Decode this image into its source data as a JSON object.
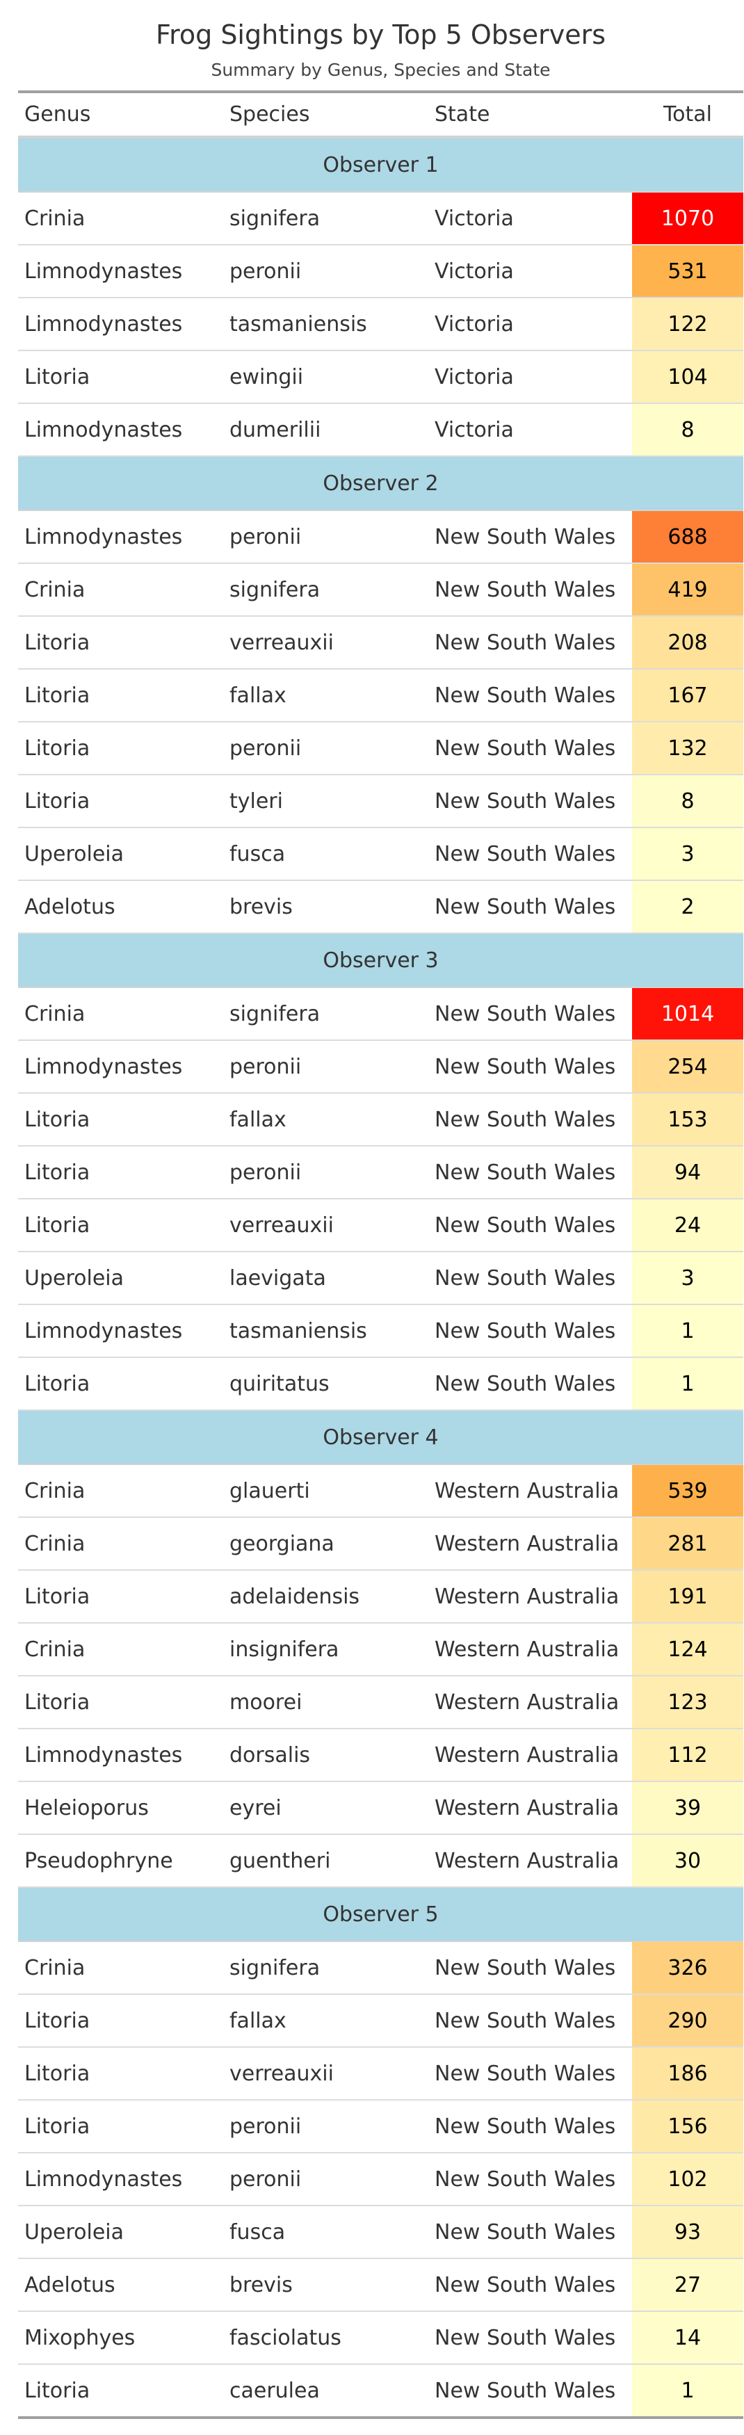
{
  "title": "Frog Sightings by Top 5 Observers",
  "subtitle": "Summary by Genus, Species and State",
  "chart_data": {
    "type": "table",
    "columns": [
      "Genus",
      "Species",
      "State",
      "Total"
    ],
    "color_scale": {
      "low": "#ffffcc",
      "mid": "#feb24c",
      "high": "#ff0000",
      "max_value": 1070
    },
    "groups": [
      {
        "name": "Observer 1",
        "rows": [
          [
            "Crinia",
            "signifera",
            "Victoria",
            1070
          ],
          [
            "Limnodynastes",
            "peronii",
            "Victoria",
            531
          ],
          [
            "Limnodynastes",
            "tasmaniensis",
            "Victoria",
            122
          ],
          [
            "Litoria",
            "ewingii",
            "Victoria",
            104
          ],
          [
            "Limnodynastes",
            "dumerilii",
            "Victoria",
            8
          ]
        ]
      },
      {
        "name": "Observer 2",
        "rows": [
          [
            "Limnodynastes",
            "peronii",
            "New South Wales",
            688
          ],
          [
            "Crinia",
            "signifera",
            "New South Wales",
            419
          ],
          [
            "Litoria",
            "verreauxii",
            "New South Wales",
            208
          ],
          [
            "Litoria",
            "fallax",
            "New South Wales",
            167
          ],
          [
            "Litoria",
            "peronii",
            "New South Wales",
            132
          ],
          [
            "Litoria",
            "tyleri",
            "New South Wales",
            8
          ],
          [
            "Uperoleia",
            "fusca",
            "New South Wales",
            3
          ],
          [
            "Adelotus",
            "brevis",
            "New South Wales",
            2
          ]
        ]
      },
      {
        "name": "Observer 3",
        "rows": [
          [
            "Crinia",
            "signifera",
            "New South Wales",
            1014
          ],
          [
            "Limnodynastes",
            "peronii",
            "New South Wales",
            254
          ],
          [
            "Litoria",
            "fallax",
            "New South Wales",
            153
          ],
          [
            "Litoria",
            "peronii",
            "New South Wales",
            94
          ],
          [
            "Litoria",
            "verreauxii",
            "New South Wales",
            24
          ],
          [
            "Uperoleia",
            "laevigata",
            "New South Wales",
            3
          ],
          [
            "Limnodynastes",
            "tasmaniensis",
            "New South Wales",
            1
          ],
          [
            "Litoria",
            "quiritatus",
            "New South Wales",
            1
          ]
        ]
      },
      {
        "name": "Observer 4",
        "rows": [
          [
            "Crinia",
            "glauerti",
            "Western Australia",
            539
          ],
          [
            "Crinia",
            "georgiana",
            "Western Australia",
            281
          ],
          [
            "Litoria",
            "adelaidensis",
            "Western Australia",
            191
          ],
          [
            "Crinia",
            "insignifera",
            "Western Australia",
            124
          ],
          [
            "Litoria",
            "moorei",
            "Western Australia",
            123
          ],
          [
            "Limnodynastes",
            "dorsalis",
            "Western Australia",
            112
          ],
          [
            "Heleioporus",
            "eyrei",
            "Western Australia",
            39
          ],
          [
            "Pseudophryne",
            "guentheri",
            "Western Australia",
            30
          ]
        ]
      },
      {
        "name": "Observer 5",
        "rows": [
          [
            "Crinia",
            "signifera",
            "New South Wales",
            326
          ],
          [
            "Litoria",
            "fallax",
            "New South Wales",
            290
          ],
          [
            "Litoria",
            "verreauxii",
            "New South Wales",
            186
          ],
          [
            "Litoria",
            "peronii",
            "New South Wales",
            156
          ],
          [
            "Limnodynastes",
            "peronii",
            "New South Wales",
            102
          ],
          [
            "Uperoleia",
            "fusca",
            "New South Wales",
            93
          ],
          [
            "Adelotus",
            "brevis",
            "New South Wales",
            27
          ],
          [
            "Mixophyes",
            "fasciolatus",
            "New South Wales",
            14
          ],
          [
            "Litoria",
            "caerulea",
            "New South Wales",
            1
          ]
        ]
      }
    ]
  }
}
